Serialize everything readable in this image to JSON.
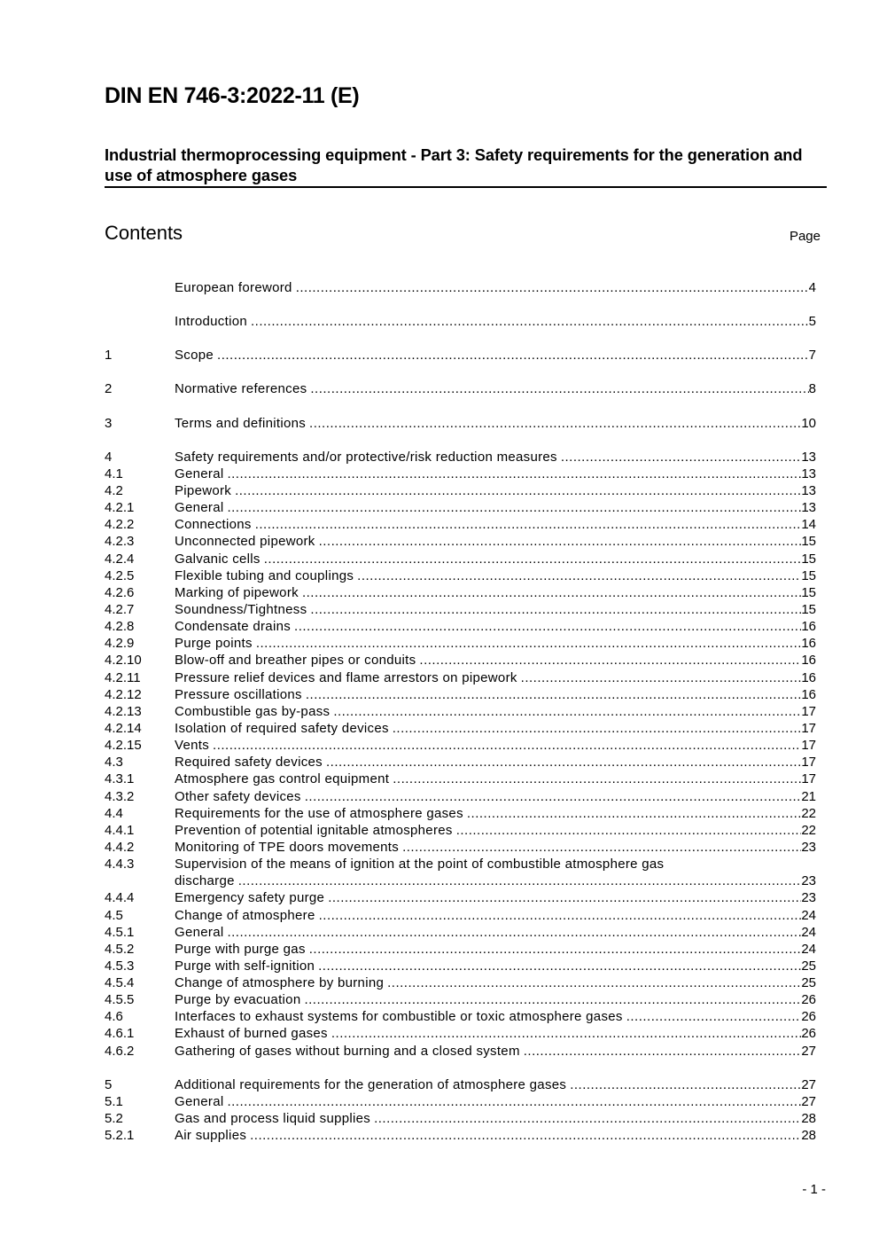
{
  "header": {
    "doc_id": "DIN EN 746-3:2022-11 (E)",
    "subtitle": "Industrial thermoprocessing equipment - Part 3: Safety requirements for the generation and use of atmosphere gases",
    "contents_heading": "Contents",
    "page_heading": "Page"
  },
  "toc_groups": [
    [
      {
        "num": "",
        "title": "European foreword",
        "page": "4"
      }
    ],
    [
      {
        "num": "",
        "title": "Introduction",
        "page": "5"
      }
    ],
    [
      {
        "num": "1",
        "title": "Scope",
        "page": "7"
      }
    ],
    [
      {
        "num": "2",
        "title": "Normative references",
        "page": "8"
      }
    ],
    [
      {
        "num": "3",
        "title": "Terms and definitions",
        "page": "10"
      }
    ],
    [
      {
        "num": "4",
        "title": "Safety requirements and/or protective/risk reduction measures",
        "page": "13"
      },
      {
        "num": "4.1",
        "title": "General",
        "page": "13"
      },
      {
        "num": "4.2",
        "title": "Pipework",
        "page": "13"
      },
      {
        "num": "4.2.1",
        "title": "General",
        "page": "13"
      },
      {
        "num": "4.2.2",
        "title": "Connections",
        "page": "14"
      },
      {
        "num": "4.2.3",
        "title": "Unconnected pipework",
        "page": "15"
      },
      {
        "num": "4.2.4",
        "title": "Galvanic cells",
        "page": "15"
      },
      {
        "num": "4.2.5",
        "title": "Flexible tubing and couplings",
        "page": "15"
      },
      {
        "num": "4.2.6",
        "title": "Marking of pipework",
        "page": "15"
      },
      {
        "num": "4.2.7",
        "title": "Soundness/Tightness",
        "page": "15"
      },
      {
        "num": "4.2.8",
        "title": "Condensate drains",
        "page": "16"
      },
      {
        "num": "4.2.9",
        "title": "Purge points",
        "page": "16"
      },
      {
        "num": "4.2.10",
        "title": "Blow-off and breather pipes or conduits",
        "page": "16"
      },
      {
        "num": "4.2.11",
        "title": "Pressure relief devices and flame arrestors on pipework",
        "page": "16"
      },
      {
        "num": "4.2.12",
        "title": "Pressure oscillations",
        "page": "16"
      },
      {
        "num": "4.2.13",
        "title": "Combustible gas by-pass",
        "page": "17"
      },
      {
        "num": "4.2.14",
        "title": "Isolation of required safety devices",
        "page": "17"
      },
      {
        "num": "4.2.15",
        "title": "Vents",
        "page": "17"
      },
      {
        "num": "4.3",
        "title": "Required safety devices",
        "page": "17"
      },
      {
        "num": "4.3.1",
        "title": "Atmosphere gas control equipment",
        "page": "17"
      },
      {
        "num": "4.3.2",
        "title": "Other safety devices",
        "page": "21"
      },
      {
        "num": "4.4",
        "title": "Requirements for the use of atmosphere gases",
        "page": "22"
      },
      {
        "num": "4.4.1",
        "title": "Prevention of potential ignitable atmospheres",
        "page": "22"
      },
      {
        "num": "4.4.2",
        "title": "Monitoring of TPE doors movements",
        "page": "23"
      },
      {
        "num": "4.4.3",
        "title": "Supervision of the means of ignition at the point of combustible atmosphere gas",
        "title_cont": "discharge",
        "page": "23"
      },
      {
        "num": "4.4.4",
        "title": "Emergency safety purge",
        "page": "23"
      },
      {
        "num": "4.5",
        "title": "Change of atmosphere",
        "page": "24"
      },
      {
        "num": "4.5.1",
        "title": "General",
        "page": "24"
      },
      {
        "num": "4.5.2",
        "title": "Purge with purge gas",
        "page": "24"
      },
      {
        "num": "4.5.3",
        "title": "Purge with self-ignition",
        "page": "25"
      },
      {
        "num": "4.5.4",
        "title": "Change of atmosphere by burning",
        "page": "25"
      },
      {
        "num": "4.5.5",
        "title": "Purge by evacuation",
        "page": "26"
      },
      {
        "num": "4.6",
        "title": "Interfaces to exhaust systems for combustible or toxic atmosphere gases",
        "page": "26"
      },
      {
        "num": "4.6.1",
        "title": "Exhaust of burned gases",
        "page": "26"
      },
      {
        "num": "4.6.2",
        "title": "Gathering of gases without burning and a closed system",
        "page": "27"
      }
    ],
    [
      {
        "num": "5",
        "title": "Additional requirements for the generation of atmosphere gases",
        "page": "27"
      },
      {
        "num": "5.1",
        "title": "General",
        "page": "27"
      },
      {
        "num": "5.2",
        "title": "Gas and process liquid supplies",
        "page": "28"
      },
      {
        "num": "5.2.1",
        "title": "Air supplies",
        "page": "28"
      }
    ]
  ],
  "footer": {
    "folio": "- 1 -"
  }
}
